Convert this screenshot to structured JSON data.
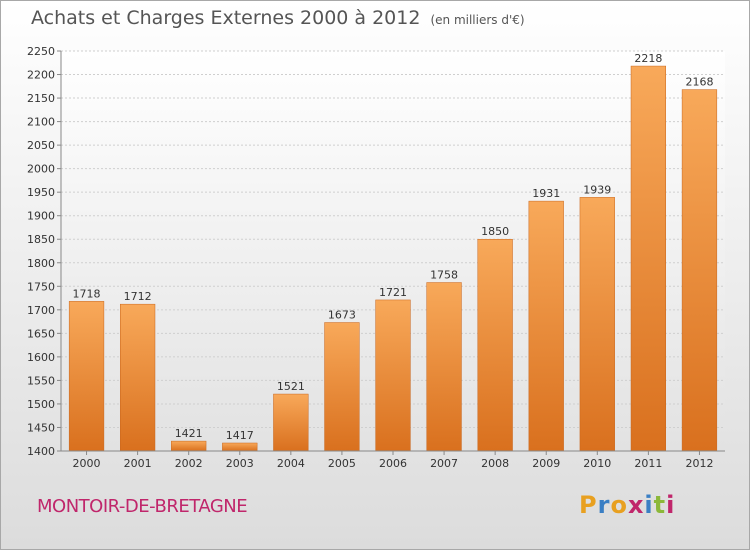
{
  "header": {
    "title": "Achats et Charges Externes 2000 à 2012",
    "unit": "(en milliers d'€)"
  },
  "footer": {
    "commune": "MONTOIR-DE-BRETAGNE",
    "logo": "Proxiti",
    "logo_colors": [
      "#e8a020",
      "#3a7fc4",
      "#e8a020",
      "#c0266b",
      "#3a7fc4",
      "#8cb83a",
      "#c0266b"
    ]
  },
  "chart_data": {
    "type": "bar",
    "title": "Achats et Charges Externes 2000 à 2012",
    "subtitle": "(en milliers d'€)",
    "xlabel": "",
    "ylabel": "",
    "categories": [
      "2000",
      "2001",
      "2002",
      "2003",
      "2004",
      "2005",
      "2006",
      "2007",
      "2008",
      "2009",
      "2010",
      "2011",
      "2012"
    ],
    "values": [
      1718,
      1712,
      1421,
      1417,
      1521,
      1673,
      1721,
      1758,
      1850,
      1931,
      1939,
      2218,
      2168
    ],
    "ylim": [
      1400,
      2250
    ],
    "yticks": [
      1400,
      1450,
      1500,
      1550,
      1600,
      1650,
      1700,
      1750,
      1800,
      1850,
      1900,
      1950,
      2000,
      2050,
      2100,
      2150,
      2200,
      2250
    ],
    "grid": true,
    "legend": "none",
    "bar_color": "#f0923a"
  }
}
